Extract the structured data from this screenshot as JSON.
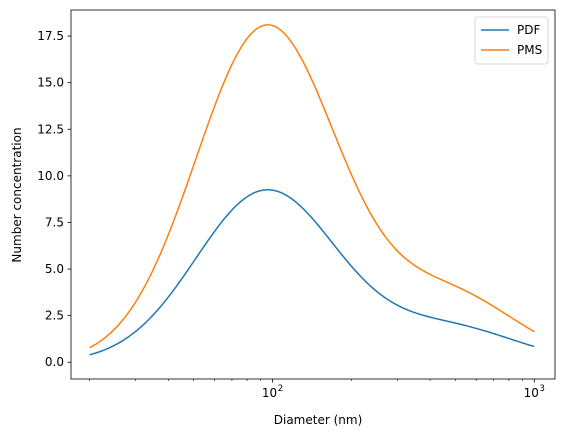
{
  "chart_data": {
    "type": "line",
    "xlabel": "Diameter (nm)",
    "ylabel": "Number concentration",
    "x_scale": "log",
    "xlim": [
      17,
      1200
    ],
    "ylim": [
      -0.9,
      18.9
    ],
    "y_ticks": [
      0.0,
      2.5,
      5.0,
      7.5,
      10.0,
      12.5,
      15.0,
      17.5
    ],
    "y_tick_labels": [
      "0.0",
      "2.5",
      "5.0",
      "7.5",
      "10.0",
      "12.5",
      "15.0",
      "17.5"
    ],
    "x_major_ticks": [
      100,
      1000
    ],
    "x_tick_labels": [
      "10",
      "2",
      "10",
      "3"
    ],
    "grid": false,
    "legend": "top-right",
    "x_range": [
      20,
      1000
    ],
    "series": [
      {
        "name": "PDF",
        "color": "#1f77b4",
        "modes": [
          {
            "peak": 9.2,
            "center": 95,
            "log_sigma": 0.27
          },
          {
            "peak": 1.85,
            "center": 470,
            "log_sigma": 0.26
          }
        ]
      },
      {
        "name": "PMS",
        "color": "#ff7f0e",
        "modes": [
          {
            "peak": 18.0,
            "center": 95,
            "log_sigma": 0.27
          },
          {
            "peak": 3.6,
            "center": 470,
            "log_sigma": 0.26
          }
        ]
      }
    ]
  }
}
